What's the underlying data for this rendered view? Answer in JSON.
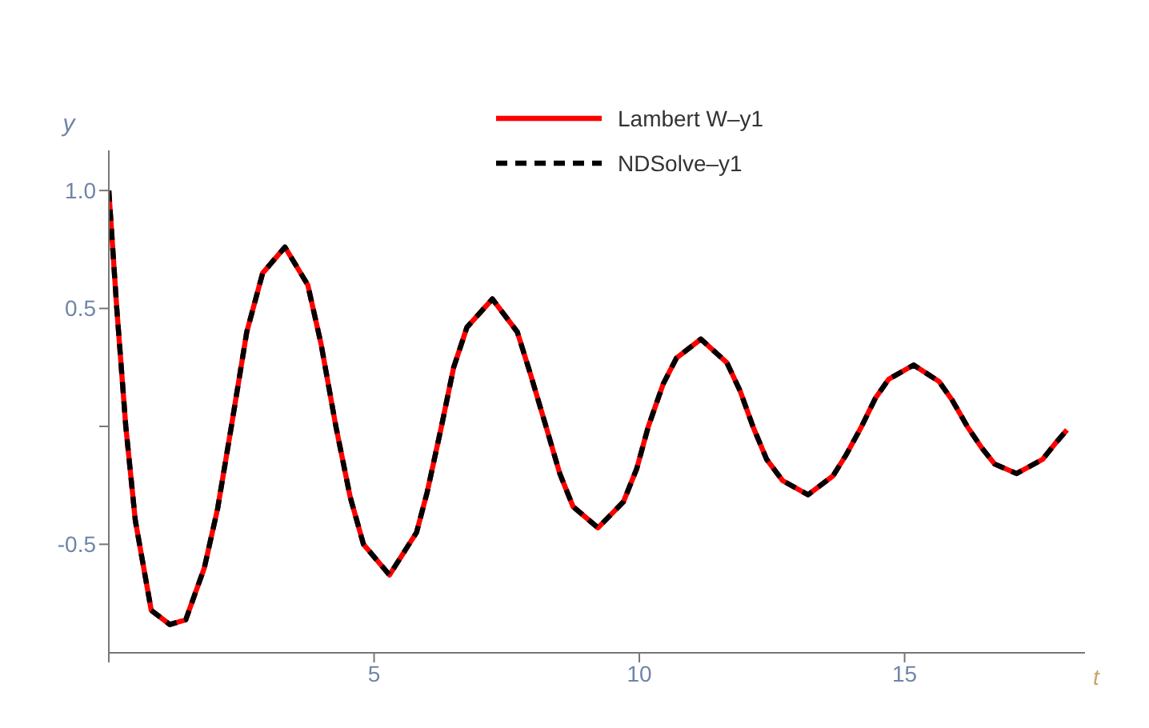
{
  "chart_data": {
    "type": "line",
    "xlabel": "t",
    "ylabel": "y",
    "x": [
      0,
      0.15,
      0.32,
      0.5,
      0.8,
      1.15,
      1.45,
      1.8,
      2.05,
      2.31,
      2.6,
      2.9,
      3.32,
      3.75,
      4.0,
      4.28,
      4.55,
      4.8,
      5.29,
      5.8,
      6.0,
      6.27,
      6.5,
      6.75,
      7.23,
      7.7,
      7.95,
      8.24,
      8.5,
      8.75,
      9.22,
      9.7,
      9.95,
      10.17,
      10.45,
      10.7,
      11.16,
      11.65,
      11.9,
      12.14,
      12.4,
      12.7,
      13.18,
      13.65,
      13.9,
      14.19,
      14.45,
      14.7,
      15.17,
      15.65,
      15.9,
      16.18,
      16.45,
      16.7,
      17.11,
      17.6,
      17.85,
      18.06
    ],
    "series": [
      {
        "name": "Lambert W–y1",
        "color": "#ff0000",
        "line_style": "solid",
        "values": [
          1,
          0.5,
          0,
          -0.4,
          -0.78,
          -0.84,
          -0.82,
          -0.6,
          -0.35,
          0,
          0.4,
          0.65,
          0.76,
          0.6,
          0.35,
          0,
          -0.3,
          -0.5,
          -0.63,
          -0.45,
          -0.28,
          0,
          0.25,
          0.42,
          0.54,
          0.4,
          0.22,
          0,
          -0.2,
          -0.34,
          -0.43,
          -0.32,
          -0.18,
          0,
          0.18,
          0.29,
          0.37,
          0.27,
          0.15,
          0,
          -0.14,
          -0.23,
          -0.29,
          -0.21,
          -0.12,
          0,
          0.12,
          0.2,
          0.26,
          0.19,
          0.11,
          0,
          -0.09,
          -0.16,
          -0.2,
          -0.14,
          -0.07,
          -0.015
        ]
      },
      {
        "name": "NDSolve–y1",
        "color": "#000000",
        "line_style": "dashed",
        "values": [
          1,
          0.5,
          0,
          -0.4,
          -0.78,
          -0.84,
          -0.82,
          -0.6,
          -0.35,
          0,
          0.4,
          0.65,
          0.76,
          0.6,
          0.35,
          0,
          -0.3,
          -0.5,
          -0.63,
          -0.45,
          -0.28,
          0,
          0.25,
          0.42,
          0.54,
          0.4,
          0.22,
          0,
          -0.2,
          -0.34,
          -0.43,
          -0.32,
          -0.18,
          0,
          0.18,
          0.29,
          0.37,
          0.27,
          0.15,
          0,
          -0.14,
          -0.23,
          -0.29,
          -0.21,
          -0.12,
          0,
          0.12,
          0.2,
          0.26,
          0.19,
          0.11,
          0,
          -0.09,
          -0.16,
          -0.2,
          -0.14,
          -0.07,
          -0.015
        ]
      }
    ],
    "xlim": [
      0,
      18.4
    ],
    "xticks": [
      {
        "value": 0,
        "label": null
      },
      5,
      10,
      15
    ],
    "ylim": [
      -0.96,
      1.17
    ],
    "yticks": [
      {
        "value": -0.5,
        "label": "-0.5"
      },
      {
        "value": 0,
        "label": null
      },
      0.5,
      {
        "value": 1,
        "label": "1.0"
      }
    ],
    "grid": false,
    "legend": "top",
    "marker": "none"
  }
}
